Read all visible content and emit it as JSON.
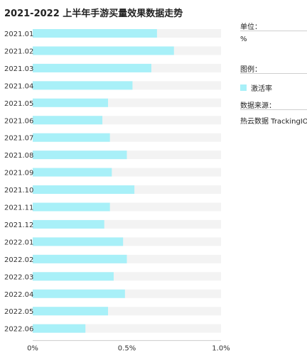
{
  "header": {
    "title": "2021-2022 上半年手游买量效果数据走势"
  },
  "side": {
    "unit_label": "单位：",
    "unit_value": "%",
    "legend_label": "图例：",
    "legend_item": "激活率",
    "source_label": "数据来源：",
    "source_value": "热云数据 TrackingIO"
  },
  "colors": {
    "bar": "#a8f0f8",
    "track": "#f3f3f3",
    "grid": "#cccccc"
  },
  "chart_data": {
    "type": "bar",
    "orientation": "horizontal",
    "categories": [
      "2021.01",
      "2021.02",
      "2021.03",
      "2021.04",
      "2021.05",
      "2021.06",
      "2021.07",
      "2021.08",
      "2021.09",
      "2021.10",
      "2021.11",
      "2021.12",
      "2022.01",
      "2022.02",
      "2022.03",
      "2022.04",
      "2022.05",
      "2022.06"
    ],
    "series": [
      {
        "name": "激活率",
        "values": [
          0.66,
          0.75,
          0.63,
          0.53,
          0.4,
          0.37,
          0.41,
          0.5,
          0.42,
          0.54,
          0.41,
          0.38,
          0.48,
          0.5,
          0.43,
          0.49,
          0.4,
          0.28
        ]
      }
    ],
    "xlim": [
      0,
      1.0
    ],
    "xticks": [
      "0%",
      "0.5%",
      "1.0%"
    ],
    "xtick_values": [
      0,
      0.5,
      1.0
    ],
    "unit": "%",
    "grid": false,
    "legend": "right"
  }
}
